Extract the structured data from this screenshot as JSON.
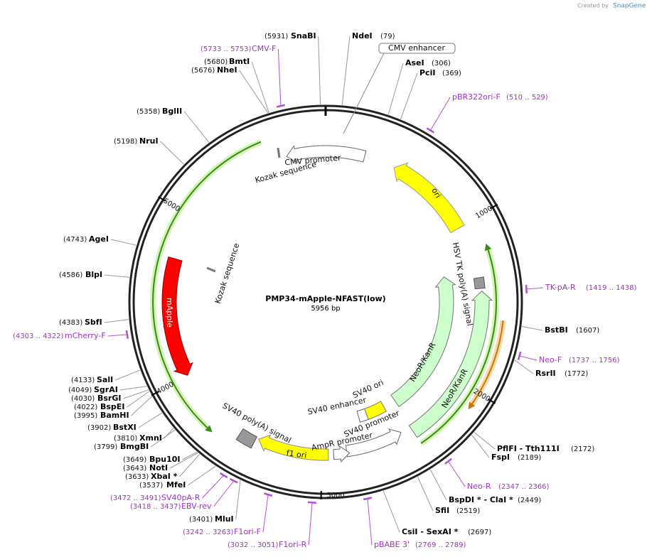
{
  "title": "PMP34-mApple-NFAST(low)",
  "length": "5956 bp",
  "credit": "Created by",
  "brand": "SnapGene",
  "ticks": [
    "1000",
    "2000",
    "3000",
    "4000",
    "5000"
  ],
  "enzymes": [
    {
      "name": "SnaBI",
      "pos": "(5931)"
    },
    {
      "name": "NdeI",
      "pos": "(79)"
    },
    {
      "name": "AseI",
      "pos": "(306)"
    },
    {
      "name": "PciI",
      "pos": "(369)"
    },
    {
      "name": "BmtI",
      "pos": "(5680)"
    },
    {
      "name": "NheI",
      "pos": "(5676)"
    },
    {
      "name": "BglII",
      "pos": "(5358)"
    },
    {
      "name": "NruI",
      "pos": "(5198)"
    },
    {
      "name": "AgeI",
      "pos": "(4743)"
    },
    {
      "name": "BlpI",
      "pos": "(4586)"
    },
    {
      "name": "SbfI",
      "pos": "(4383)"
    },
    {
      "name": "SalI",
      "pos": "(4133)"
    },
    {
      "name": "SgrAI",
      "pos": "(4049)"
    },
    {
      "name": "BsrGI",
      "pos": "(4030)"
    },
    {
      "name": "BspEI",
      "pos": "(4022)"
    },
    {
      "name": "BamHI",
      "pos": "(3995)"
    },
    {
      "name": "BstXI",
      "pos": "(3902)"
    },
    {
      "name": "XmnI",
      "pos": "(3810)"
    },
    {
      "name": "BmgBI",
      "pos": "(3799)"
    },
    {
      "name": "Bpu10I",
      "pos": "(3649)"
    },
    {
      "name": "NotI",
      "pos": "(3643)"
    },
    {
      "name": "XbaI *",
      "pos": "(3633)"
    },
    {
      "name": "MfeI",
      "pos": "(3537)"
    },
    {
      "name": "MluI",
      "pos": "(3401)"
    },
    {
      "name": "CsiI  - SexAI *",
      "pos": "(2697)"
    },
    {
      "name": "SfiI",
      "pos": "(2519)"
    },
    {
      "name": "BspDI *  - ClaI *",
      "pos": "(2449)"
    },
    {
      "name": "FspI",
      "pos": "(2189)"
    },
    {
      "name": "PflFI  - Tth111I",
      "pos": "(2172)"
    },
    {
      "name": "RsrII",
      "pos": "(1772)"
    },
    {
      "name": "BstBI",
      "pos": "(1607)"
    }
  ],
  "primers": [
    {
      "name": "CMV-F",
      "pos": "(5733 .. 5753)"
    },
    {
      "name": "pBR322ori-F",
      "pos": "(510 .. 529)"
    },
    {
      "name": "mCherry-F",
      "pos": "(4303 .. 4322)"
    },
    {
      "name": "SV40pA-R",
      "pos": "(3472 .. 3491)"
    },
    {
      "name": "EBV-rev",
      "pos": "(3418 .. 3437)"
    },
    {
      "name": "F1ori-F",
      "pos": "(3242 .. 3263)"
    },
    {
      "name": "F1ori-R",
      "pos": "(3032 .. 3051)"
    },
    {
      "name": "pBABE 3'",
      "pos": "(2769 .. 2789)"
    },
    {
      "name": "Neo-R",
      "pos": "(2347 .. 2366)"
    },
    {
      "name": "Neo-F",
      "pos": "(1737 .. 1756)"
    },
    {
      "name": "TK-pA-R",
      "pos": "(1419 .. 1438)"
    }
  ],
  "features": [
    "CMV promoter",
    "Kozak sequence",
    "ori",
    "HSV TK poly(A) signal",
    "NeoR/KanR",
    "NeoR/KanR",
    "SV40 ori",
    "SV40 enhancer",
    "SV40 promoter",
    "AmpR promoter",
    "f1 ori",
    "SV40 poly(A) signal",
    "mApple",
    "Kozak sequence",
    "CMV enhancer"
  ]
}
